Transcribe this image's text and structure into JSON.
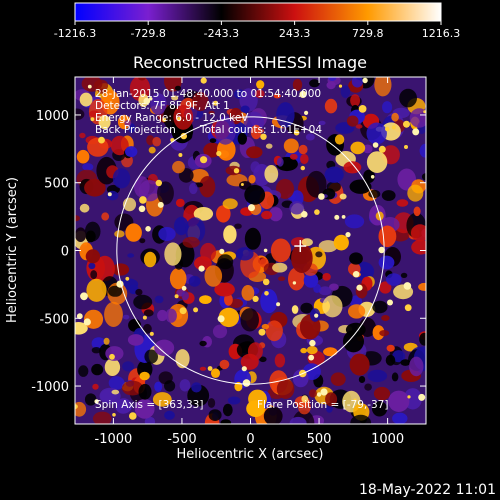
{
  "title": "Reconstructed RHESSI Image",
  "colorbar": {
    "ticks": [
      "-1216.3",
      "-729.8",
      "-243.3",
      "243.3",
      "729.8",
      "1216.3"
    ],
    "range": [
      -1216.3,
      1216.3
    ],
    "colors": [
      "#0000ff",
      "#7a1fd0",
      "#000000",
      "#cc1010",
      "#ff9a00",
      "#ffffff"
    ]
  },
  "annotations": {
    "line1": "28-Jan-2015 01:48:40.000 to 01:54:40.000",
    "line2": "Detectors: 7F 8F 9F, Att 1",
    "line3": "Energy Range: 6.0 - 12.0 keV",
    "line4a": "Back Projection",
    "line4b": "Total counts: 1.01E+04",
    "spin_axis": "Spin Axis = [363,33]",
    "flare_position": "Flare Position = [-79,-37]"
  },
  "chart_data": {
    "type": "heatmap",
    "title": "Reconstructed RHESSI Image",
    "xlabel": "Heliocentric X (arcsec)",
    "ylabel": "Heliocentric Y (arcsec)",
    "xlim": [
      -1280,
      1280
    ],
    "ylim": [
      -1280,
      1280
    ],
    "x_ticks": [
      "-1000",
      "-500",
      "0",
      "500",
      "1000"
    ],
    "x_tick_values": [
      -1000,
      -500,
      0,
      500,
      1000
    ],
    "y_ticks": [
      "-1000",
      "-500",
      "0",
      "500",
      "1000"
    ],
    "y_tick_values": [
      -1000,
      -500,
      0,
      500,
      1000
    ],
    "solar_disk_radius": 975,
    "marker": [
      363,
      33
    ]
  },
  "footer": {
    "timestamp": "18-May-2022 11:01"
  }
}
